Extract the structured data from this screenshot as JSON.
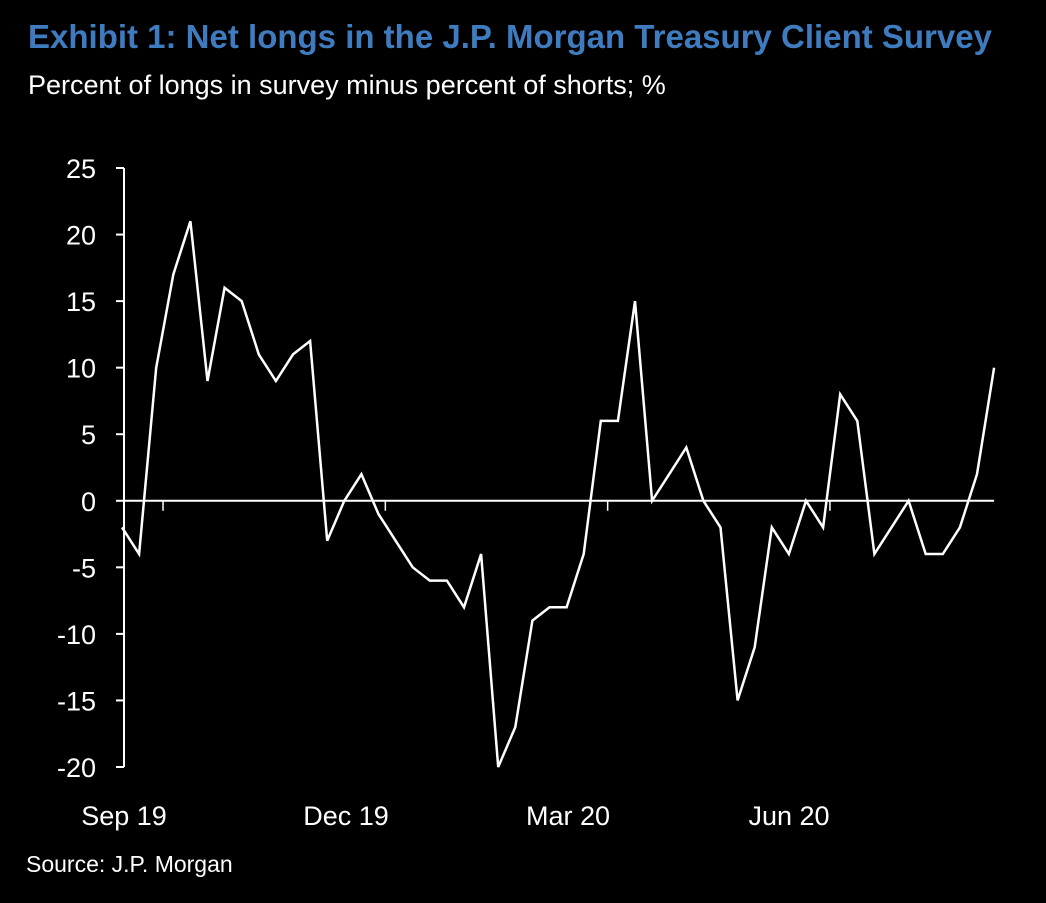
{
  "title": "Exhibit 1: Net longs in the J.P. Morgan Treasury Client Survey",
  "subtitle": "Percent of longs in survey minus percent of shorts; %",
  "source": "Source: J.P. Morgan",
  "colors": {
    "title": "#3f7cbf",
    "background": "#000000",
    "line": "#ffffff",
    "axis": "#ffffff"
  },
  "chart_data": {
    "type": "line",
    "ylim": [
      -20,
      25
    ],
    "y_ticks": [
      25,
      20,
      15,
      10,
      5,
      0,
      -5,
      -10,
      -15,
      -20
    ],
    "x_tick_labels": [
      "Sep 19",
      "Dec 19",
      "Mar 20",
      "Jun 20"
    ],
    "x_tick_label_positions": [
      0,
      13,
      26,
      39
    ],
    "grid": false,
    "legend": "none",
    "values": [
      -2,
      -4,
      10,
      17,
      21,
      9,
      16,
      15,
      11,
      9,
      11,
      12,
      -3,
      0,
      2,
      -1,
      -3,
      -5,
      -6,
      -6,
      -8,
      -4,
      -20,
      -17,
      -9,
      -8,
      -8,
      -4,
      6,
      6,
      15,
      0,
      2,
      4,
      0,
      -2,
      -15,
      -11,
      -2,
      -4,
      0,
      -2,
      8,
      6,
      -4,
      -2,
      0,
      -4,
      -4,
      -2,
      2,
      10
    ]
  }
}
